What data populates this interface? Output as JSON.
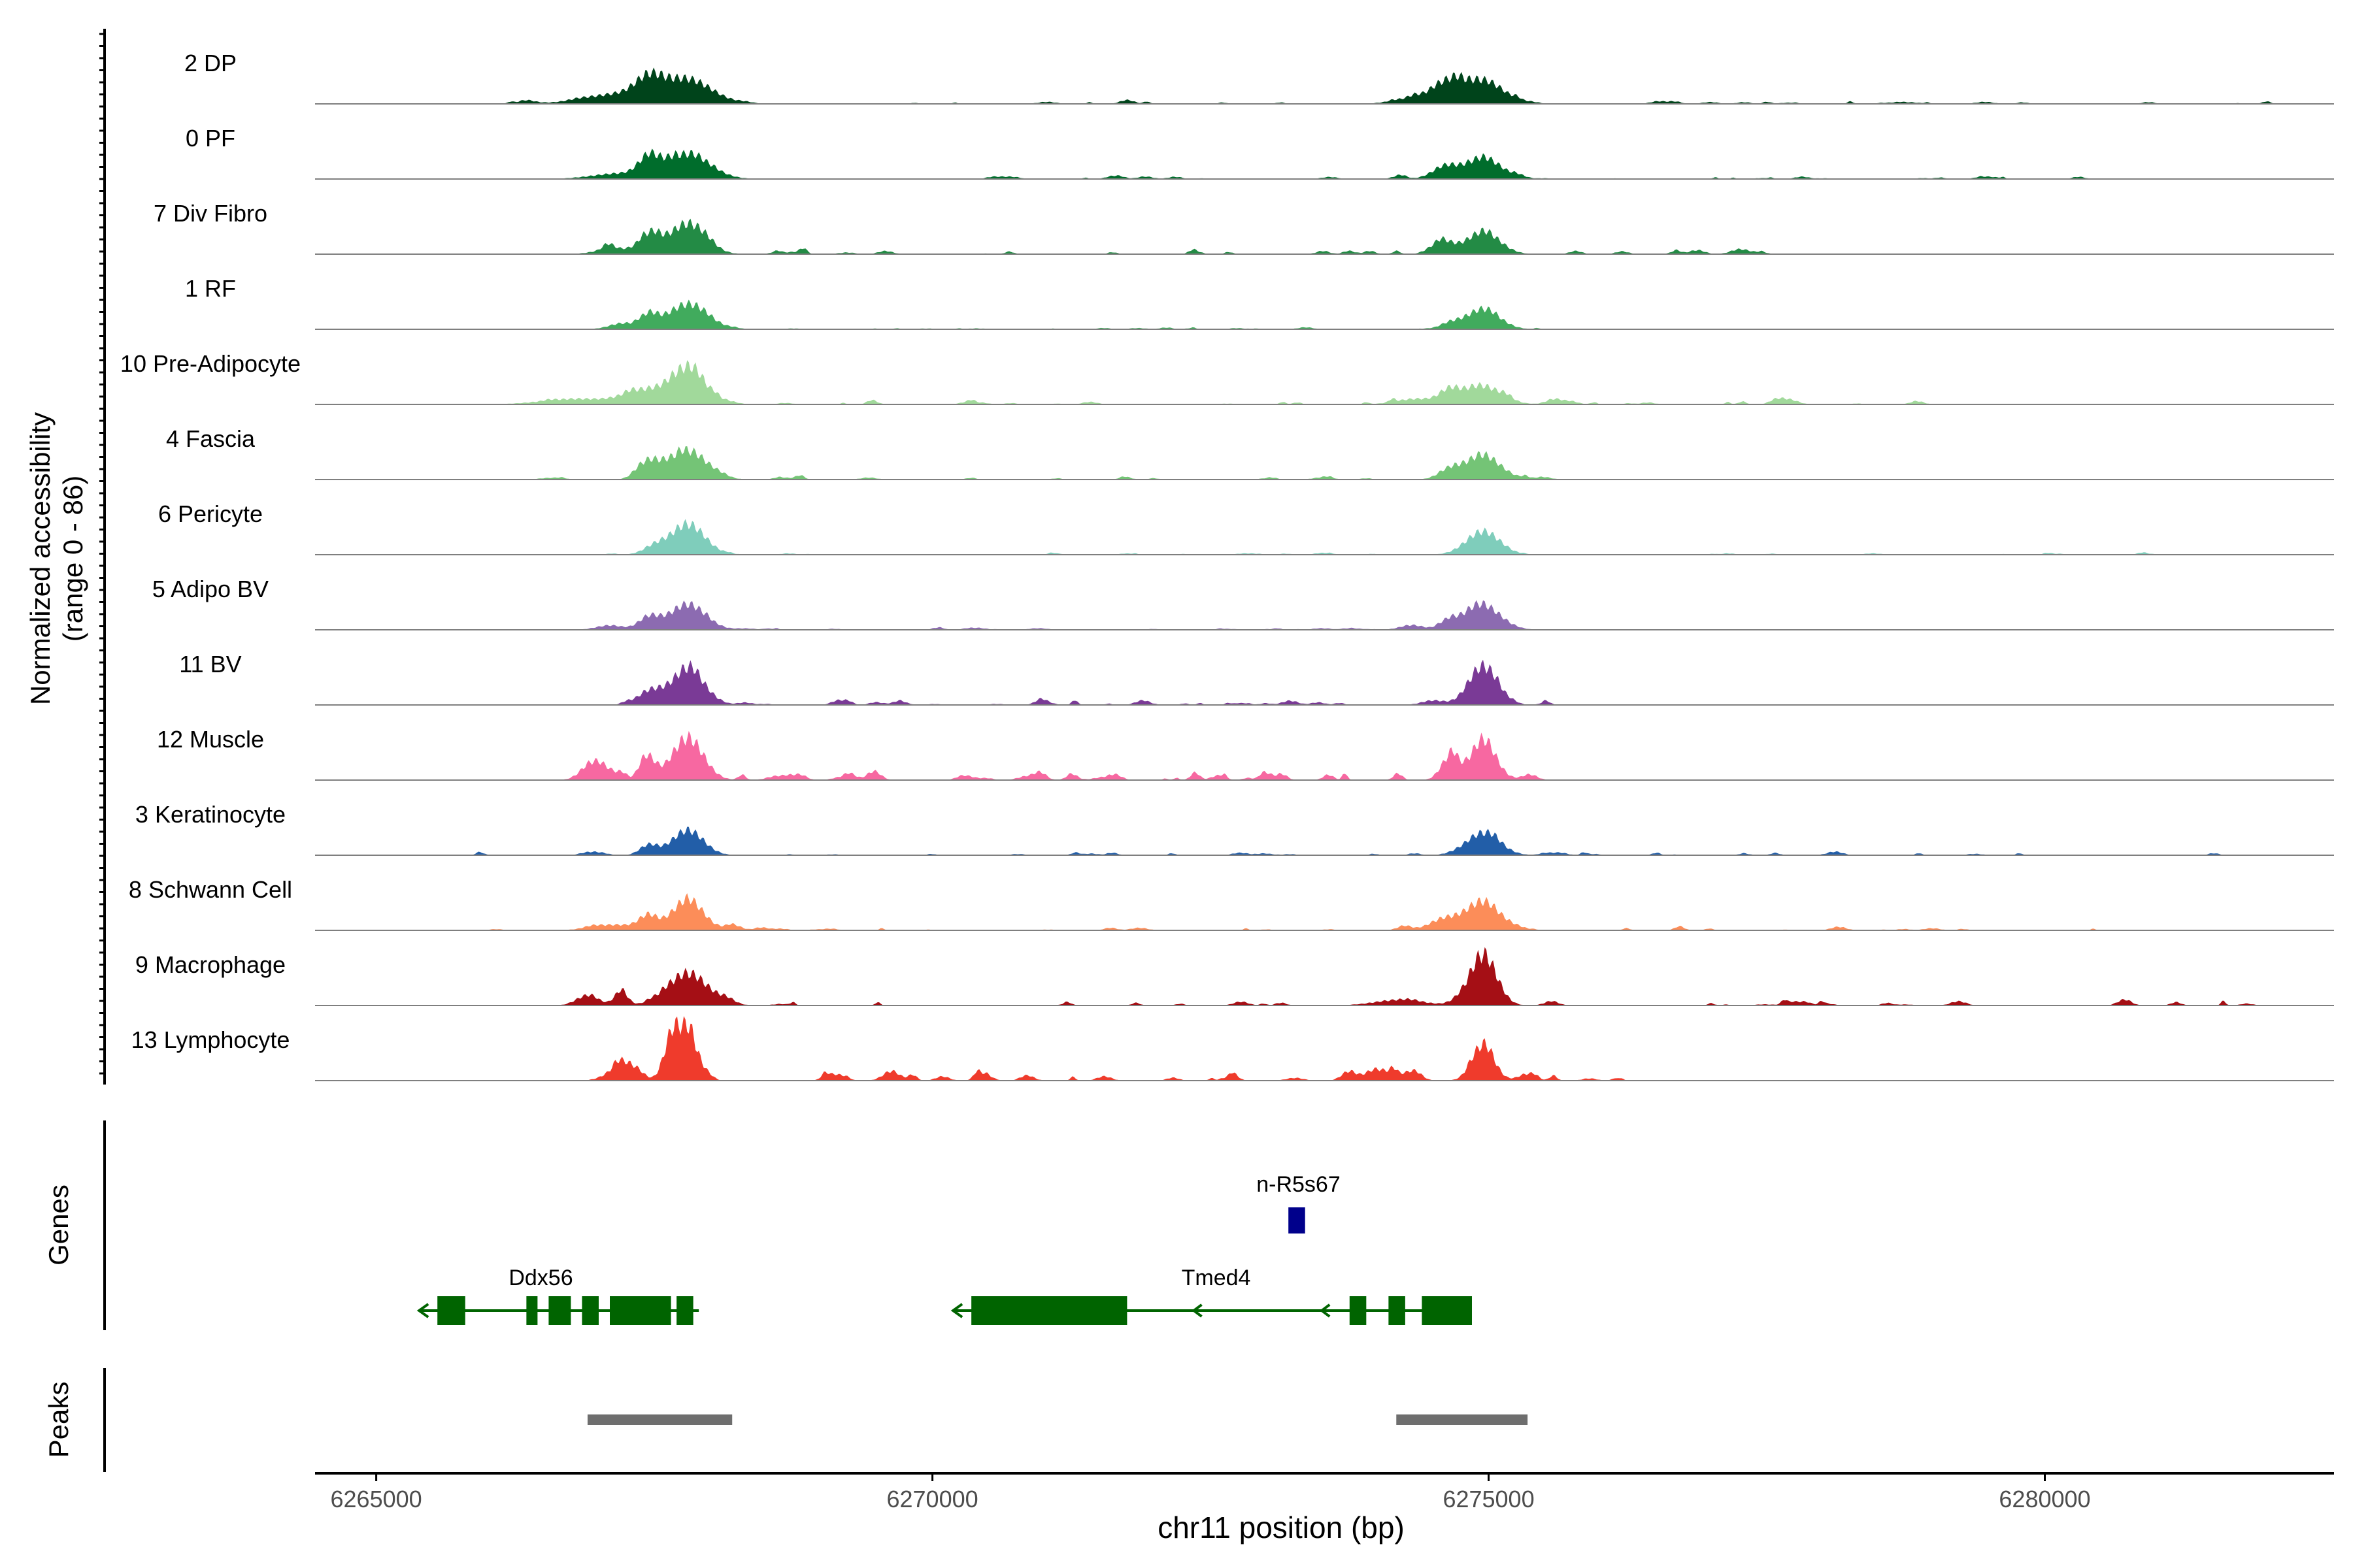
{
  "chart_data": {
    "type": "area",
    "title": "",
    "xlabel": "chr11 position (bp)",
    "ylabel_line1": "Normalized accessibility",
    "ylabel_line2": "(range 0 - 86)",
    "y_range": [
      0,
      86
    ],
    "xlim": [
      6264450,
      6282600
    ],
    "x_ticks": [
      6265000,
      6270000,
      6275000,
      6280000
    ],
    "x_tick_labels": [
      "6265000",
      "6270000",
      "6275000",
      "6280000"
    ],
    "peak_centers": [
      6267800,
      6274950
    ],
    "series": [
      {
        "name": "2 DP",
        "color": "#00441b",
        "peaks": [
          [
            6267200,
            320,
            0.18
          ],
          [
            6267450,
            120,
            0.3
          ],
          [
            6267800,
            220,
            0.42
          ],
          [
            6274400,
            200,
            0.14
          ],
          [
            6274650,
            120,
            0.28
          ],
          [
            6274950,
            180,
            0.42
          ]
        ],
        "noise": 0.04,
        "noise_range": [
          6266000,
          6282000
        ]
      },
      {
        "name": "0 PF",
        "color": "#006d2c",
        "peaks": [
          [
            6267200,
            250,
            0.1
          ],
          [
            6267450,
            90,
            0.3
          ],
          [
            6267800,
            200,
            0.44
          ],
          [
            6274600,
            120,
            0.18
          ],
          [
            6274950,
            160,
            0.38
          ]
        ],
        "noise": 0.04,
        "noise_range": [
          6266500,
          6282000
        ]
      },
      {
        "name": "7 Div Fibro",
        "color": "#238b45",
        "peaks": [
          [
            6267150,
            160,
            0.1
          ],
          [
            6267450,
            90,
            0.3
          ],
          [
            6267800,
            160,
            0.55
          ],
          [
            6274600,
            90,
            0.2
          ],
          [
            6274950,
            150,
            0.4
          ]
        ],
        "noise": 0.05,
        "noise_range": [
          6266800,
          6278000
        ]
      },
      {
        "name": "1 RF",
        "color": "#41ab5d",
        "peaks": [
          [
            6267200,
            120,
            0.08
          ],
          [
            6267450,
            80,
            0.22
          ],
          [
            6267800,
            180,
            0.45
          ],
          [
            6274650,
            90,
            0.1
          ],
          [
            6274950,
            150,
            0.35
          ]
        ],
        "noise": 0.02,
        "noise_range": [
          6267000,
          6275500
        ]
      },
      {
        "name": "10 Pre-Adipocyte",
        "color": "#a1d99b",
        "peaks": [
          [
            6266800,
            300,
            0.1
          ],
          [
            6267400,
            180,
            0.24
          ],
          [
            6267800,
            160,
            0.6
          ],
          [
            6274350,
            180,
            0.1
          ],
          [
            6274650,
            90,
            0.22
          ],
          [
            6274950,
            170,
            0.32
          ],
          [
            6278850,
            60,
            0.06
          ]
        ],
        "noise": 0.05,
        "noise_range": [
          6266200,
          6279000
        ]
      },
      {
        "name": "4 Fascia",
        "color": "#74c476",
        "peaks": [
          [
            6267450,
            100,
            0.3
          ],
          [
            6267800,
            170,
            0.52
          ],
          [
            6274650,
            100,
            0.16
          ],
          [
            6274950,
            160,
            0.42
          ]
        ],
        "noise": 0.03,
        "noise_range": [
          6266500,
          6275800
        ]
      },
      {
        "name": "6 Pericyte",
        "color": "#7fcdbb",
        "peaks": [
          [
            6267500,
            100,
            0.14
          ],
          [
            6267800,
            150,
            0.55
          ],
          [
            6274950,
            150,
            0.42
          ]
        ],
        "noise": 0.02,
        "noise_range": [
          6266800,
          6282000
        ]
      },
      {
        "name": "5 Adipo BV",
        "color": "#8c6bb1",
        "peaks": [
          [
            6267100,
            120,
            0.08
          ],
          [
            6267450,
            90,
            0.22
          ],
          [
            6267800,
            160,
            0.46
          ],
          [
            6274300,
            100,
            0.08
          ],
          [
            6274650,
            90,
            0.14
          ],
          [
            6274950,
            160,
            0.42
          ]
        ],
        "noise": 0.02,
        "noise_range": [
          6267000,
          6275500
        ]
      },
      {
        "name": "11 BV",
        "color": "#7a3a96",
        "peaks": [
          [
            6267450,
            100,
            0.24
          ],
          [
            6267800,
            140,
            0.64
          ],
          [
            6274500,
            100,
            0.08
          ],
          [
            6274950,
            130,
            0.7
          ]
        ],
        "noise": 0.05,
        "noise_range": [
          6267200,
          6275600
        ]
      },
      {
        "name": "12 Muscle",
        "color": "#f768a1",
        "peaks": [
          [
            6267000,
            120,
            0.18
          ],
          [
            6267450,
            70,
            0.34
          ],
          [
            6267800,
            140,
            0.76
          ],
          [
            6274650,
            80,
            0.4
          ],
          [
            6274950,
            120,
            0.62
          ]
        ],
        "noise": 0.12,
        "noise_range": [
          6266800,
          6275500
        ]
      },
      {
        "name": "3 Keratinocyte",
        "color": "#225ea8",
        "peaks": [
          [
            6267450,
            80,
            0.18
          ],
          [
            6267800,
            140,
            0.45
          ],
          [
            6274950,
            150,
            0.4
          ]
        ],
        "noise": 0.04,
        "noise_range": [
          6265300,
          6282000
        ]
      },
      {
        "name": "8 Schwann Cell",
        "color": "#fc8d59",
        "peaks": [
          [
            6267150,
            200,
            0.1
          ],
          [
            6267450,
            80,
            0.22
          ],
          [
            6267800,
            140,
            0.55
          ],
          [
            6274600,
            130,
            0.2
          ],
          [
            6274950,
            150,
            0.52
          ]
        ],
        "noise": 0.04,
        "noise_range": [
          6265500,
          6281000
        ]
      },
      {
        "name": "9 Macrophage",
        "color": "#a50f15",
        "peaks": [
          [
            6266900,
            100,
            0.18
          ],
          [
            6267200,
            60,
            0.24
          ],
          [
            6267800,
            180,
            0.58
          ],
          [
            6274200,
            220,
            0.1
          ],
          [
            6274950,
            120,
            0.92
          ]
        ],
        "noise": 0.06,
        "noise_range": [
          6266800,
          6282000
        ]
      },
      {
        "name": "13 Lymphocyte",
        "color": "#ef3b2c",
        "peaks": [
          [
            6267200,
            120,
            0.24
          ],
          [
            6267650,
            70,
            0.62
          ],
          [
            6267800,
            90,
            0.86
          ],
          [
            6274100,
            150,
            0.14
          ],
          [
            6274950,
            100,
            0.58
          ]
        ],
        "noise": 0.1,
        "noise_range": [
          6267100,
          6276200
        ]
      }
    ],
    "genes_panel_label": "Genes",
    "genes": [
      {
        "name": "Ddx56",
        "strand": "-",
        "color": "#006400",
        "span": [
          6265550,
          6267900
        ],
        "exons": [
          [
            6265550,
            6265800
          ],
          [
            6266350,
            6266450
          ],
          [
            6266550,
            6266750
          ],
          [
            6266850,
            6267000
          ],
          [
            6267100,
            6267650
          ],
          [
            6267700,
            6267850
          ]
        ],
        "label_pos": 6266480
      },
      {
        "name": "Tmed4",
        "strand": "-",
        "color": "#006400",
        "span": [
          6270350,
          6274850
        ],
        "exons": [
          [
            6270350,
            6271750
          ],
          [
            6273750,
            6273900
          ],
          [
            6274100,
            6274250
          ],
          [
            6274400,
            6274850
          ]
        ],
        "label_pos": 6272550
      },
      {
        "name": "n-R5s67",
        "strand": "+",
        "color": "#00008b",
        "span": [
          6273200,
          6273350
        ],
        "exons": [
          [
            6273200,
            6273350
          ]
        ],
        "label_pos": 6273290
      }
    ],
    "peaks_panel_label": "Peaks",
    "peak_regions": [
      [
        6266900,
        6268200
      ],
      [
        6274170,
        6275350
      ]
    ]
  }
}
